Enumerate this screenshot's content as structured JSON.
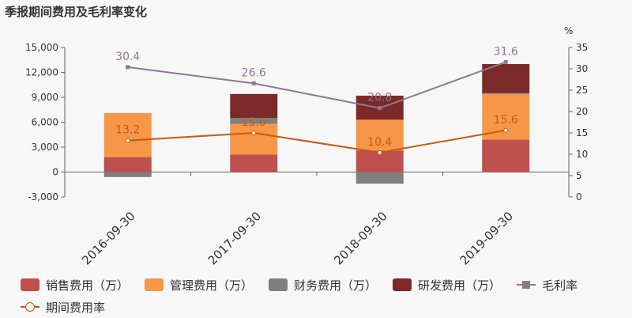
{
  "title": "季报期间费用及毛利率变化",
  "chart_data": {
    "type": "bar",
    "categories": [
      "2016-09-30",
      "2017-09-30",
      "2018-09-30",
      "2019-09-30"
    ],
    "series": [
      {
        "name": "销售费用（万）",
        "color": "#c0504d",
        "values": [
          1800,
          2100,
          2600,
          3900
        ]
      },
      {
        "name": "管理费用（万）",
        "color": "#f79646",
        "values": [
          5300,
          3700,
          3700,
          5500
        ]
      },
      {
        "name": "财务费用（万）",
        "color": "#7f7f7f",
        "values": [
          -600,
          700,
          -1400,
          100
        ]
      },
      {
        "name": "研发费用（万）",
        "color": "#7b2929",
        "values": [
          0,
          2900,
          2900,
          3500
        ]
      }
    ],
    "lines": [
      {
        "name": "毛利率",
        "color": "#8c7a8c",
        "marker": "square",
        "values": [
          30.4,
          26.6,
          20.8,
          31.6
        ],
        "labels": [
          "30.4",
          "26.6",
          "20.8",
          "31.6"
        ]
      },
      {
        "name": "期间费用率",
        "color": "#c55a11",
        "marker": "circle",
        "values": [
          13.2,
          15.0,
          10.4,
          15.6
        ],
        "labels": [
          "13.2",
          "15.0",
          "10.4",
          "15.6"
        ]
      }
    ],
    "y_left": {
      "min": -3000,
      "max": 15000,
      "ticks": [
        "-3,000",
        "0",
        "3,000",
        "6,000",
        "9,000",
        "12,000",
        "15,000"
      ]
    },
    "y_right": {
      "min": 0,
      "max": 35,
      "unit": "%",
      "ticks": [
        "0",
        "5",
        "10",
        "15",
        "20",
        "25",
        "30",
        "35"
      ]
    }
  }
}
